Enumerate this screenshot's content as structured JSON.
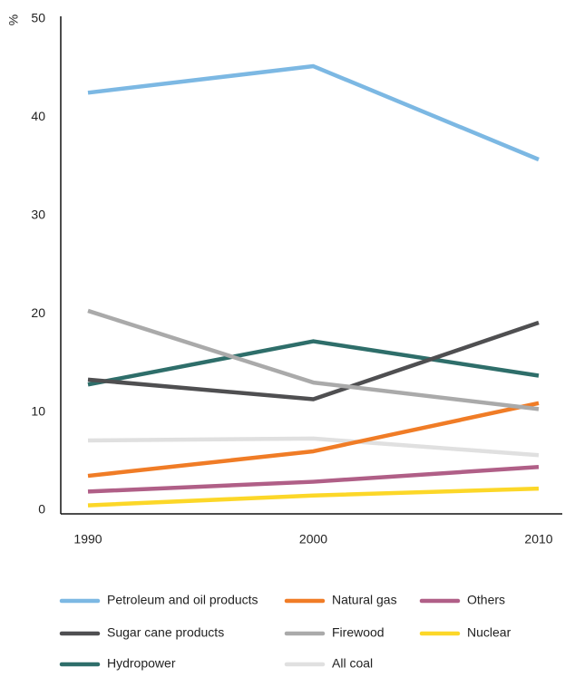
{
  "chart_data": {
    "type": "line",
    "ylabel": "%",
    "x": [
      1990,
      2000,
      2010
    ],
    "xlim": [
      1990,
      2010
    ],
    "xticks": [
      1990,
      2000,
      2010
    ],
    "ylim": [
      0,
      50
    ],
    "yticks": [
      0,
      10,
      20,
      30,
      40,
      50
    ],
    "grid": false,
    "series": [
      {
        "name": "Petroleum and oil products",
        "color": "#7cb8e3",
        "values": [
          42.5,
          45.2,
          35.7
        ]
      },
      {
        "name": "Natural gas",
        "color": "#f07c26",
        "values": [
          3.5,
          6.0,
          10.9
        ]
      },
      {
        "name": "Others",
        "color": "#b05f87",
        "values": [
          1.9,
          2.9,
          4.4
        ]
      },
      {
        "name": "Sugar cane products",
        "color": "#4f4f51",
        "values": [
          13.3,
          11.3,
          19.1
        ]
      },
      {
        "name": "Firewood",
        "color": "#aaaaaa",
        "values": [
          20.3,
          13.0,
          10.3
        ]
      },
      {
        "name": "Nuclear",
        "color": "#fcd728",
        "values": [
          0.5,
          1.5,
          2.2
        ]
      },
      {
        "name": "Hydropower",
        "color": "#2e6e6a",
        "values": [
          12.8,
          17.2,
          13.7
        ]
      },
      {
        "name": "All coal",
        "color": "#e0e0e0",
        "values": [
          7.1,
          7.3,
          5.6
        ]
      }
    ]
  }
}
